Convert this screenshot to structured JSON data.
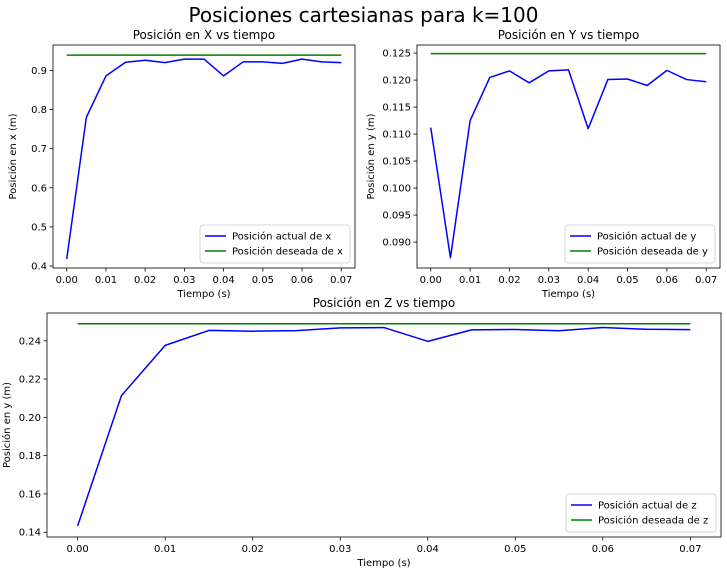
{
  "figure": {
    "suptitle": "Posiciones cartesianas para k=100"
  },
  "colors": {
    "actual": "#0000ff",
    "desired": "#008000",
    "axes": "#000000",
    "background": "#ffffff"
  },
  "chart_data": [
    {
      "id": "x",
      "type": "line",
      "title": "Posición en X vs tiempo",
      "xlabel": "Tiempo (s)",
      "ylabel": "Posición en x (m)",
      "xlim": [
        -0.0035,
        0.0735
      ],
      "ylim": [
        0.395,
        0.965
      ],
      "xticks": [
        0.0,
        0.01,
        0.02,
        0.03,
        0.04,
        0.05,
        0.06,
        0.07
      ],
      "xtick_labels": [
        "0.00",
        "0.01",
        "0.02",
        "0.03",
        "0.04",
        "0.05",
        "0.06",
        "0.07"
      ],
      "yticks": [
        0.4,
        0.5,
        0.6,
        0.7,
        0.8,
        0.9
      ],
      "ytick_labels": [
        "0.4",
        "0.5",
        "0.6",
        "0.7",
        "0.8",
        "0.9"
      ],
      "grid": false,
      "legend_position": "lower-right",
      "x": [
        0.0,
        0.005,
        0.01,
        0.015,
        0.02,
        0.025,
        0.03,
        0.035,
        0.04,
        0.045,
        0.05,
        0.055,
        0.06,
        0.065,
        0.07
      ],
      "series": [
        {
          "name": "Posición actual de x",
          "color_key": "actual",
          "values": [
            0.418,
            0.78,
            0.886,
            0.921,
            0.926,
            0.92,
            0.929,
            0.929,
            0.886,
            0.922,
            0.922,
            0.918,
            0.929,
            0.922,
            0.92
          ]
        },
        {
          "name": "Posición deseada de x",
          "color_key": "desired",
          "values": [
            0.939,
            0.939,
            0.939,
            0.939,
            0.939,
            0.939,
            0.939,
            0.939,
            0.939,
            0.939,
            0.939,
            0.939,
            0.939,
            0.939,
            0.939
          ]
        }
      ]
    },
    {
      "id": "y",
      "type": "line",
      "title": "Posición en Y vs tiempo",
      "xlabel": "Tiempo (s)",
      "ylabel": "Posición en y (m)",
      "xlim": [
        -0.0035,
        0.0735
      ],
      "ylim": [
        0.0852,
        0.1265
      ],
      "xticks": [
        0.0,
        0.01,
        0.02,
        0.03,
        0.04,
        0.05,
        0.06,
        0.07
      ],
      "xtick_labels": [
        "0.00",
        "0.01",
        "0.02",
        "0.03",
        "0.04",
        "0.05",
        "0.06",
        "0.07"
      ],
      "yticks": [
        0.09,
        0.095,
        0.1,
        0.105,
        0.11,
        0.115,
        0.12,
        0.125
      ],
      "ytick_labels": [
        "0.090",
        "0.095",
        "0.100",
        "0.105",
        "0.110",
        "0.115",
        "0.120",
        "0.125"
      ],
      "grid": false,
      "legend_position": "lower-right",
      "x": [
        0.0,
        0.005,
        0.01,
        0.015,
        0.02,
        0.025,
        0.03,
        0.035,
        0.04,
        0.045,
        0.05,
        0.055,
        0.06,
        0.065,
        0.07
      ],
      "series": [
        {
          "name": "Posición actual de y",
          "color_key": "actual",
          "values": [
            0.1112,
            0.0871,
            0.1125,
            0.1205,
            0.1217,
            0.1195,
            0.1217,
            0.1219,
            0.111,
            0.1201,
            0.1202,
            0.119,
            0.1218,
            0.1201,
            0.1197
          ]
        },
        {
          "name": "Posición deseada de y",
          "color_key": "desired",
          "values": [
            0.1249,
            0.1249,
            0.1249,
            0.1249,
            0.1249,
            0.1249,
            0.1249,
            0.1249,
            0.1249,
            0.1249,
            0.1249,
            0.1249,
            0.1249,
            0.1249,
            0.1249
          ]
        }
      ]
    },
    {
      "id": "z",
      "type": "line",
      "title": "Posición en Z vs tiempo",
      "xlabel": "Tiempo (s)",
      "ylabel": "Posición en y (m)",
      "xlim": [
        -0.0035,
        0.0735
      ],
      "ylim": [
        0.1375,
        0.2545
      ],
      "xticks": [
        0.0,
        0.01,
        0.02,
        0.03,
        0.04,
        0.05,
        0.06,
        0.07
      ],
      "xtick_labels": [
        "0.00",
        "0.01",
        "0.02",
        "0.03",
        "0.04",
        "0.05",
        "0.06",
        "0.07"
      ],
      "yticks": [
        0.14,
        0.16,
        0.18,
        0.2,
        0.22,
        0.24
      ],
      "ytick_labels": [
        "0.14",
        "0.16",
        "0.18",
        "0.20",
        "0.22",
        "0.24"
      ],
      "grid": false,
      "legend_position": "lower-right",
      "x": [
        0.0,
        0.005,
        0.01,
        0.015,
        0.02,
        0.025,
        0.03,
        0.035,
        0.04,
        0.045,
        0.05,
        0.055,
        0.06,
        0.065,
        0.07
      ],
      "series": [
        {
          "name": "Posición actual de z",
          "color_key": "actual",
          "values": [
            0.1433,
            0.2113,
            0.2376,
            0.2454,
            0.245,
            0.2453,
            0.2467,
            0.2469,
            0.2397,
            0.2457,
            0.2459,
            0.2452,
            0.2469,
            0.246,
            0.2458
          ]
        },
        {
          "name": "Posición deseada de z",
          "color_key": "desired",
          "values": [
            0.2489,
            0.2489,
            0.2489,
            0.2489,
            0.2489,
            0.2489,
            0.2489,
            0.2489,
            0.2489,
            0.2489,
            0.2489,
            0.2489,
            0.2489,
            0.2489,
            0.2489
          ]
        }
      ]
    }
  ]
}
